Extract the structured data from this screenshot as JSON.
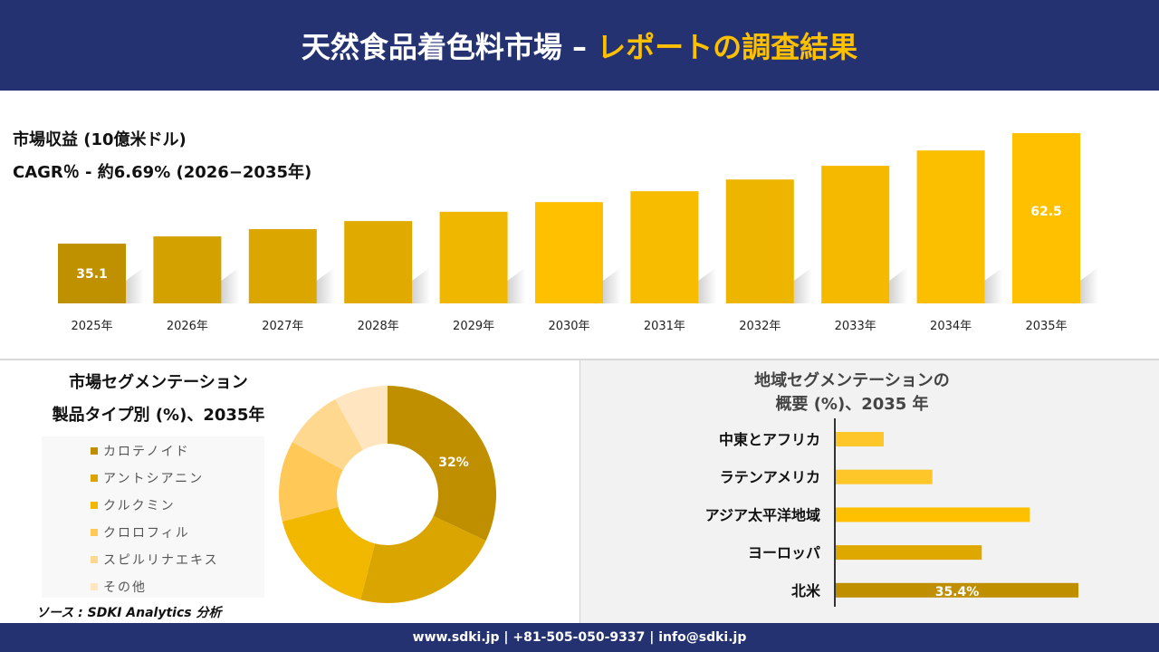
{
  "header": {
    "title_main": "天然食品着色料市場 –",
    "title_accent": "レポートの調査結果"
  },
  "revenue": {
    "title": "市場収益 (10億米ドル)",
    "cagr": "CAGR％ - 約6.69% (2026−2035年)"
  },
  "chart_data": [
    {
      "type": "bar",
      "title": "市場収益 (10億米ドル)",
      "categories": [
        "2025年",
        "2026年",
        "2027年",
        "2028年",
        "2029年",
        "2030年",
        "2031年",
        "2032年",
        "2033年",
        "2034年",
        "2035年"
      ],
      "values": [
        35.1,
        36.9,
        38.7,
        40.7,
        43.0,
        45.4,
        48.1,
        51.0,
        54.4,
        58.2,
        62.5
      ],
      "data_labels": {
        "0": "35.1",
        "10": "62.5"
      },
      "ylim": [
        20.3,
        62.5
      ]
    },
    {
      "type": "pie",
      "title": "市場セグメンテーション 製品タイプ別 (%)、2035年",
      "labels": [
        "カロテノイド",
        "アントシアニン",
        "クルクミン",
        "クロロフィル",
        "スピルリナエキス",
        "その他"
      ],
      "values": [
        32,
        22,
        17,
        12,
        9,
        8
      ],
      "colors": [
        "#bf8f00",
        "#dba500",
        "#f2b800",
        "#ffc857",
        "#ffd88f",
        "#ffe6c0"
      ],
      "data_label": "32%"
    },
    {
      "type": "bar",
      "orientation": "horizontal",
      "title": "地域セグメンテーションの概要 (%)、2035 年",
      "categories": [
        "中東とアフリカ",
        "ラテンアメリカ",
        "アジア太平洋地域",
        "ヨーロッパ",
        "北米"
      ],
      "values": [
        7.0,
        14.1,
        28.3,
        21.3,
        35.4
      ],
      "colors": [
        "#ffc629",
        "#ffc629",
        "#ffc000",
        "#dfa800",
        "#bf8f00"
      ],
      "data_label": "35.4%"
    }
  ],
  "segment": {
    "title1": "市場セグメンテーション",
    "title2": "製品タイプ別 (%)、2035年"
  },
  "region": {
    "title1": "地域セグメンテーションの",
    "title2": "概要 (%)、2035 年"
  },
  "source": "ソース : SDKI Analytics 分析",
  "footer": "www.sdki.jp | +81-505-050-9337 | info@sdki.jp"
}
